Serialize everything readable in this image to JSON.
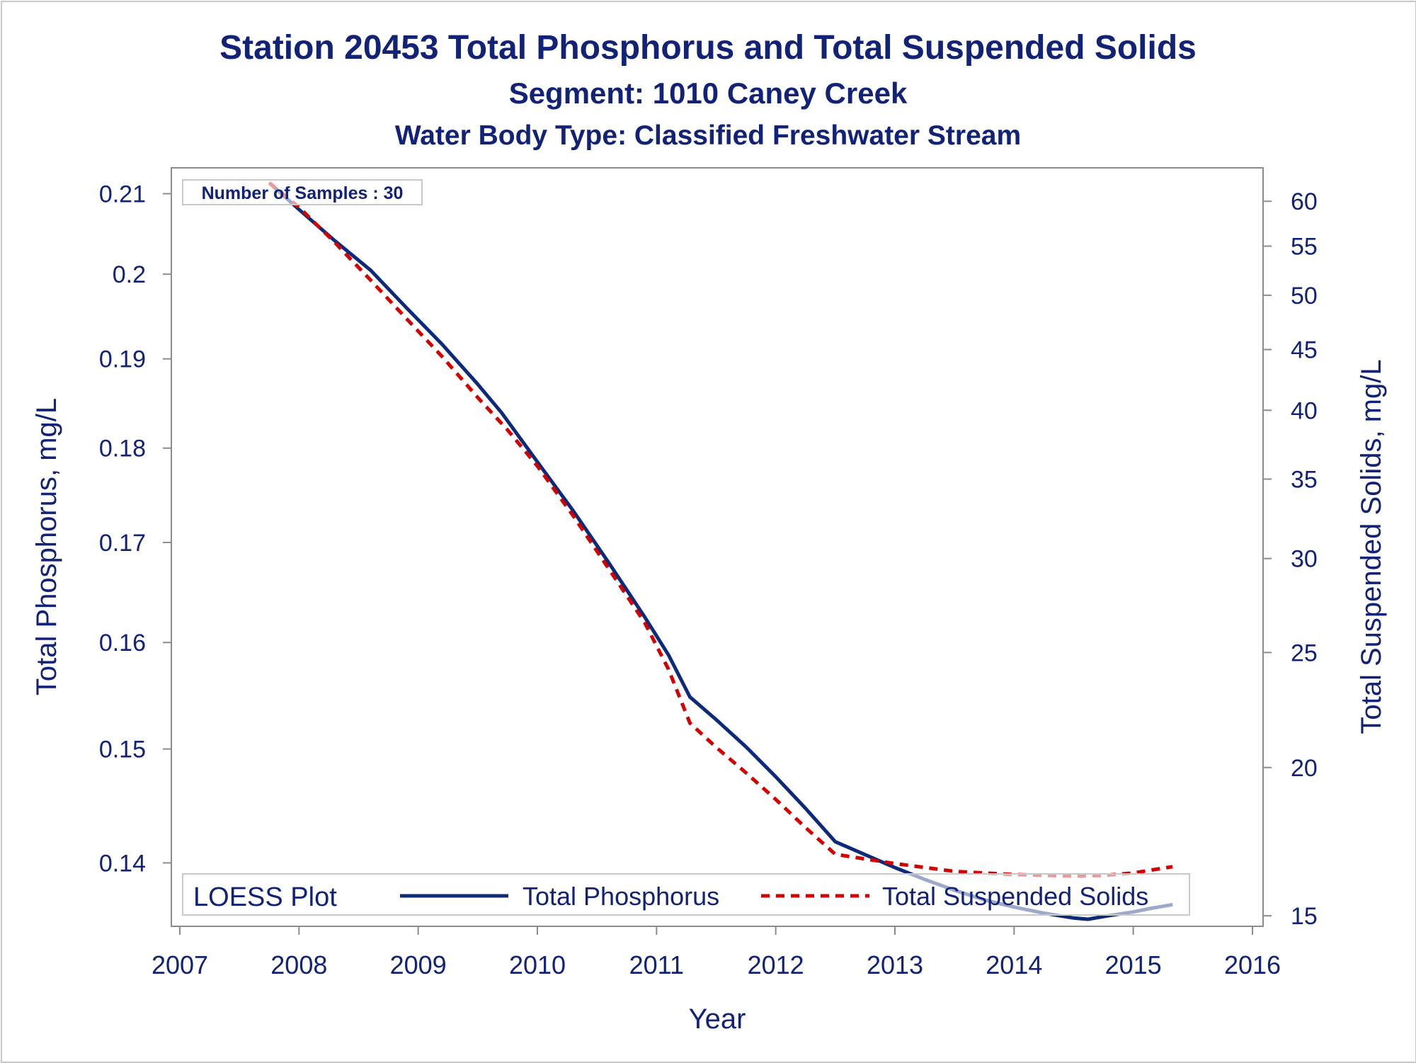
{
  "titles": {
    "title": "Station 20453  Total Phosphorus and Total Suspended Solids",
    "subtitle1": "Segment: 1010  Caney Creek",
    "subtitle2": "Water Body Type: Classified Freshwater Stream"
  },
  "inset": {
    "label": "Number of Samples : 30"
  },
  "colors": {
    "text": "#112277",
    "phosphorus": "#0d2a7a",
    "solids": "#d40000",
    "axis": "#8c8c8c"
  },
  "chart_data": {
    "type": "line",
    "title": "Station 20453  Total Phosphorus and Total Suspended Solids",
    "xlabel": "Year",
    "ylabel": "Total Phosphorus, mg/L",
    "y2label": "Total Suspended Solids, mg/L",
    "xlim": [
      2007,
      2016
    ],
    "ylim": [
      0.1353,
      0.2114
    ],
    "y2lim": [
      14.9,
      62.2
    ],
    "yscale": "log",
    "y2scale": "log",
    "grid": false,
    "x_ticks": [
      2007,
      2008,
      2009,
      2010,
      2011,
      2012,
      2013,
      2014,
      2015,
      2016
    ],
    "x_tick_labels": [
      "2007",
      "2008",
      "2009",
      "2010",
      "2011",
      "2012",
      "2013",
      "2014",
      "2015",
      "2016"
    ],
    "y_ticks": [
      0.14,
      0.15,
      0.16,
      0.17,
      0.18,
      0.19,
      0.2,
      0.21
    ],
    "y_tick_labels": [
      "0.14",
      "0.15",
      "0.16",
      "0.17",
      "0.18",
      "0.19",
      "0.2",
      "0.21"
    ],
    "y2_ticks": [
      15,
      20,
      25,
      30,
      35,
      40,
      45,
      50,
      55,
      60
    ],
    "y2_tick_labels": [
      "15",
      "20",
      "25",
      "30",
      "35",
      "40",
      "45",
      "50",
      "55",
      "60"
    ],
    "legend": {
      "title": "LOESS Plot",
      "position": "bottom-inside"
    },
    "series": [
      {
        "name": "Total Phosphorus",
        "axis": "left",
        "style": "solid",
        "x": [
          2007.75,
          2008.0,
          2008.3,
          2008.6,
          2008.9,
          2009.2,
          2009.5,
          2009.7,
          2010.0,
          2010.3,
          2010.6,
          2010.9,
          2011.1,
          2011.28,
          2011.5,
          2011.75,
          2012.0,
          2012.25,
          2012.5,
          2012.75,
          2013.0,
          2013.25,
          2013.5,
          2013.75,
          2014.0,
          2014.25,
          2014.5,
          2014.62,
          2014.8,
          2015.0,
          2015.15,
          2015.33
        ],
        "y": [
          0.2114,
          0.208,
          0.2041,
          0.2005,
          0.196,
          0.1917,
          0.1871,
          0.1839,
          0.1785,
          0.1733,
          0.1679,
          0.1625,
          0.1588,
          0.1548,
          0.1527,
          0.1502,
          0.1475,
          0.1447,
          0.1418,
          0.1407,
          0.1396,
          0.1386,
          0.1377,
          0.1369,
          0.1363,
          0.1358,
          0.1354,
          0.1353,
          0.1356,
          0.1359,
          0.1362,
          0.1365
        ]
      },
      {
        "name": "Total Suspended Solids",
        "axis": "right",
        "style": "dashed",
        "x": [
          2007.75,
          2008.0,
          2008.3,
          2008.6,
          2008.9,
          2009.2,
          2009.5,
          2009.75,
          2010.0,
          2010.3,
          2010.6,
          2010.9,
          2011.1,
          2011.28,
          2011.5,
          2011.75,
          2012.0,
          2012.25,
          2012.5,
          2013.0,
          2013.5,
          2014.0,
          2014.5,
          2014.75,
          2015.0,
          2015.33
        ],
        "y": [
          62.2,
          59.3,
          55.4,
          51.5,
          47.8,
          44.4,
          41.0,
          38.5,
          35.9,
          32.6,
          29.4,
          26.5,
          24.2,
          21.8,
          20.8,
          19.8,
          18.8,
          17.8,
          16.9,
          16.6,
          16.35,
          16.25,
          16.2,
          16.22,
          16.3,
          16.5
        ]
      }
    ]
  }
}
